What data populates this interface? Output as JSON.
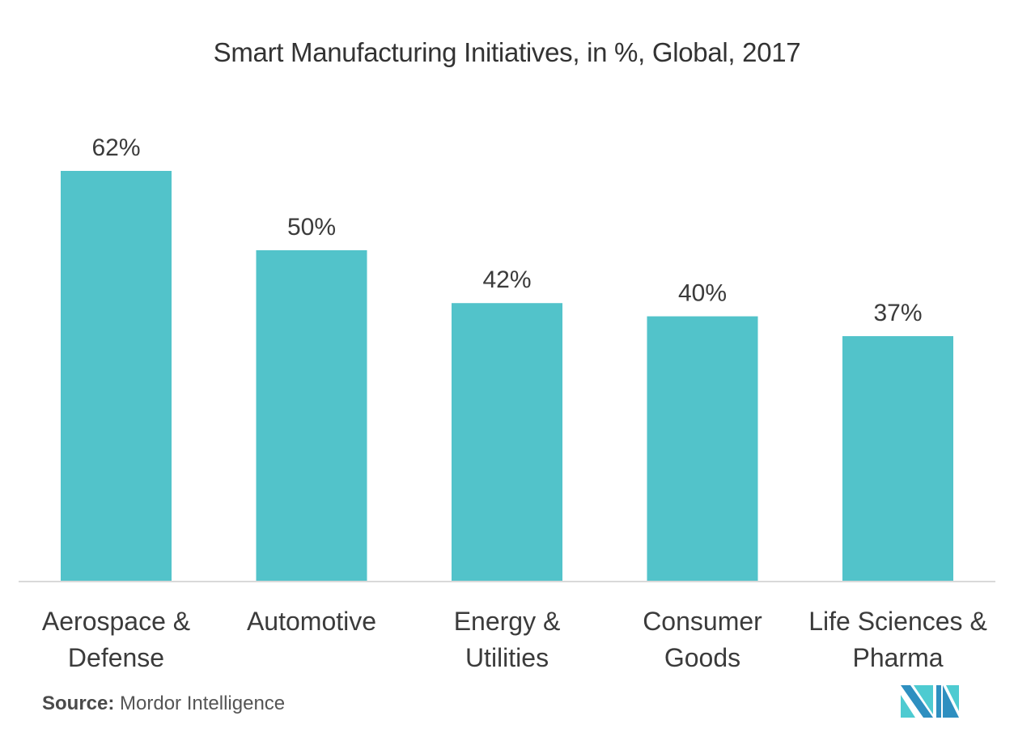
{
  "chart_data": {
    "type": "bar",
    "title": "Smart Manufacturing Initiatives, in %, Global, 2017",
    "categories": [
      [
        "Aerospace &",
        "Defense"
      ],
      [
        "Automotive"
      ],
      [
        "Energy &",
        "Utilities"
      ],
      [
        "Consumer",
        "Goods"
      ],
      [
        "Life Sciences &",
        "Pharma"
      ]
    ],
    "values": [
      62,
      50,
      42,
      40,
      37
    ],
    "value_labels": [
      "62%",
      "50%",
      "42%",
      "40%",
      "37%"
    ],
    "xlabel": "",
    "ylabel": "",
    "ylim": [
      0,
      100
    ],
    "grid": false,
    "legend": "none",
    "bar_color": "#52C3CA",
    "baseline_color": "#D9D9D9"
  },
  "source": {
    "label": "Source:",
    "text": "Mordor Intelligence"
  },
  "logo": {
    "icon": "mordor-intelligence-logo-icon",
    "colors": [
      "#2E8FC0",
      "#4ECBD1"
    ]
  }
}
